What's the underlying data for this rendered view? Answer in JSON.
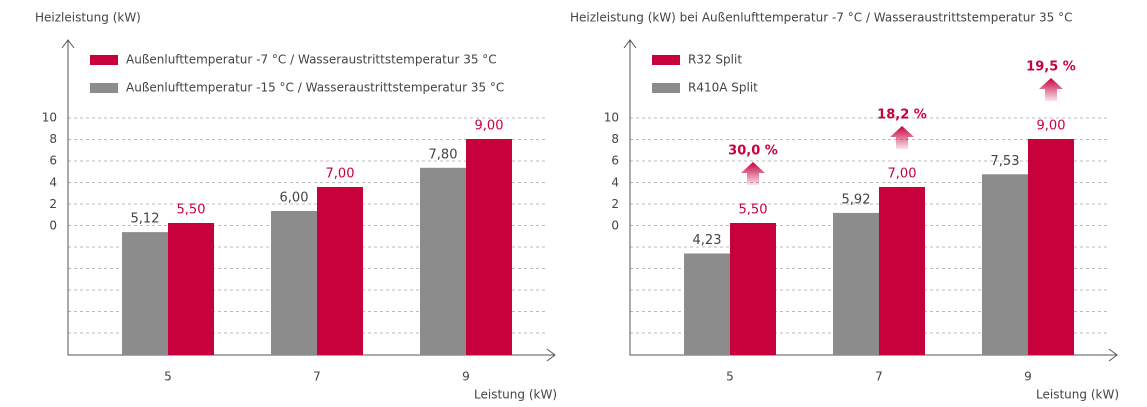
{
  "chart_data": [
    {
      "type": "bar",
      "title": "Heizleistung (kW)",
      "x_label": "Leistung (kW)",
      "categories": [
        "5",
        "7",
        "9"
      ],
      "series": [
        {
          "name": "Außenlufttemperatur -15 °C / Wasseraustrittstemperatur 35 °C",
          "color": "#8c8c8c",
          "values": [
            5.12,
            6.0,
            7.8
          ],
          "value_labels": [
            "5,12",
            "6,00",
            "7,80"
          ]
        },
        {
          "name": "Außenlufttemperatur -7 °C / Wasseraustrittstemperatur 35 °C",
          "color": "#c8003c",
          "values": [
            5.5,
            7.0,
            9.0
          ],
          "value_labels": [
            "5,50",
            "7,00",
            "9,00"
          ]
        }
      ],
      "legend_order": [
        1,
        0
      ],
      "ylim": [
        0,
        10
      ],
      "yticks": [
        10,
        8,
        6,
        4,
        2,
        0
      ],
      "grid": true
    },
    {
      "type": "bar",
      "title": "Heizleistung (kW) bei Außenlufttemperatur -7 °C / Wasseraustrittstemperatur 35 °C",
      "x_label": "Leistung (kW)",
      "categories": [
        "5",
        "7",
        "9"
      ],
      "series": [
        {
          "name": "R410A Split",
          "color": "#8c8c8c",
          "values": [
            4.23,
            5.92,
            7.53
          ],
          "value_labels": [
            "4,23",
            "5,92",
            "7,53"
          ]
        },
        {
          "name": "R32 Split",
          "color": "#c8003c",
          "values": [
            5.5,
            7.0,
            9.0
          ],
          "value_labels": [
            "5,50",
            "7,00",
            "9,00"
          ]
        }
      ],
      "legend_order": [
        1,
        0
      ],
      "annotations": [
        "30,0 %",
        "18,2 %",
        "19,5 %"
      ],
      "ylim": [
        0,
        10
      ],
      "yticks": [
        10,
        8,
        6,
        4,
        2,
        0
      ],
      "grid": true
    }
  ]
}
